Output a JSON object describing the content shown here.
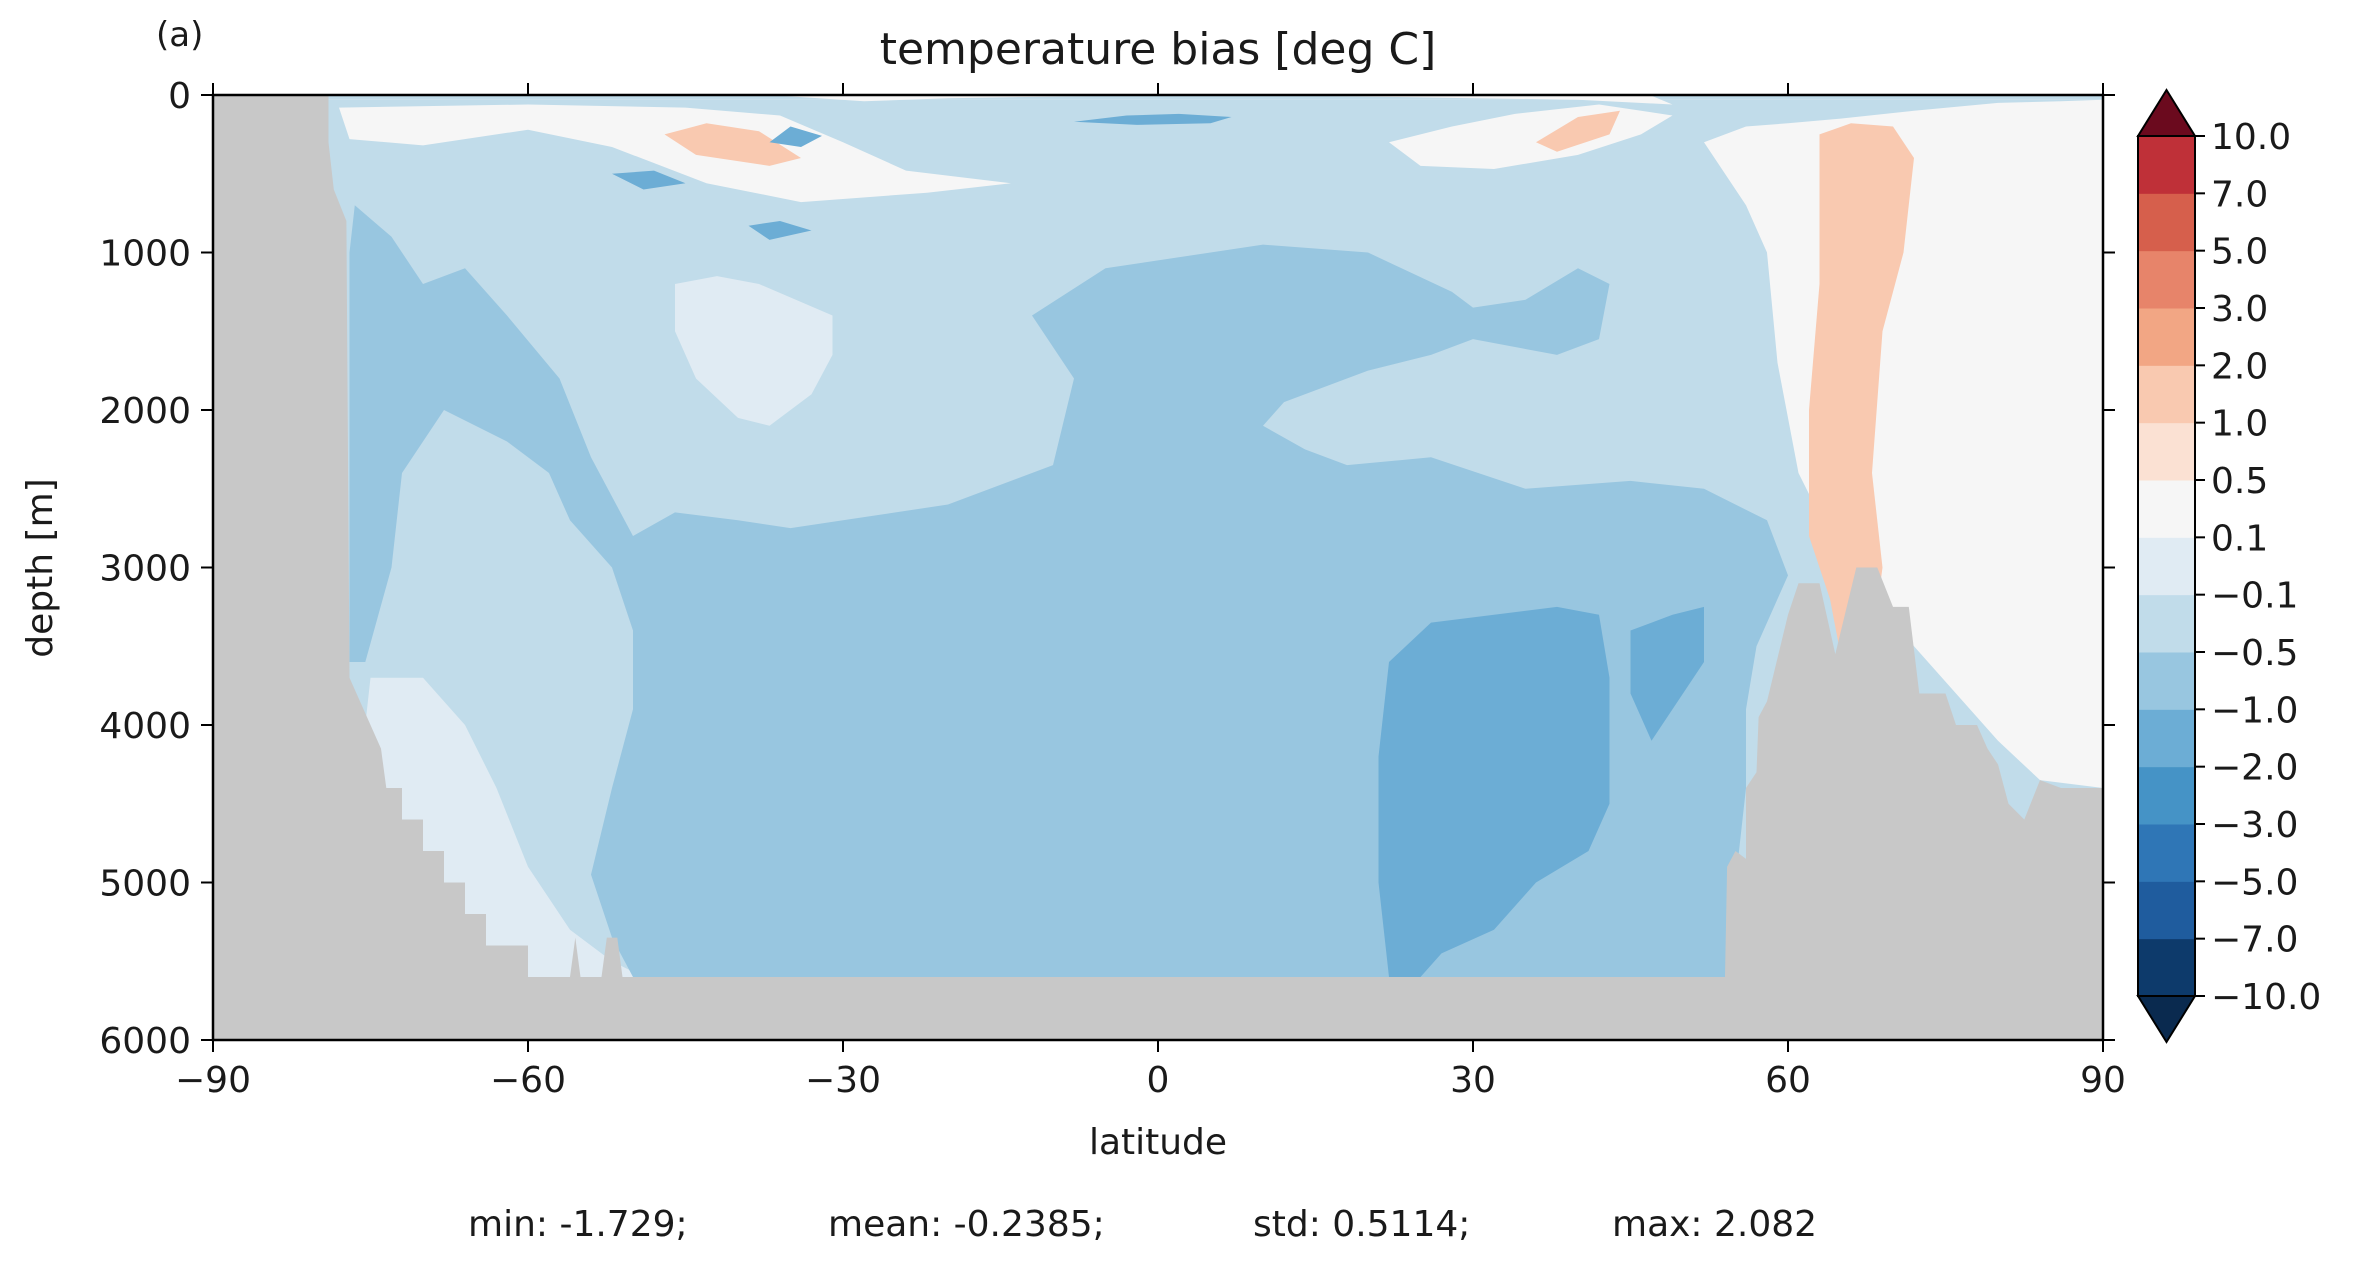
{
  "chart_data": {
    "type": "heatmap",
    "panel_label": "(a)",
    "title": "temperature bias [deg C]",
    "xlabel": "latitude",
    "ylabel": "depth [m]",
    "xlim": [
      -90,
      90
    ],
    "ylim": [
      6000,
      0
    ],
    "x_ticks": [
      -90,
      -60,
      -30,
      0,
      30,
      60,
      90
    ],
    "x_tick_labels": [
      "−90",
      "−60",
      "−30",
      "0",
      "30",
      "60",
      "90"
    ],
    "y_ticks": [
      0,
      1000,
      2000,
      3000,
      4000,
      5000,
      6000
    ],
    "y_tick_labels": [
      "0",
      "1000",
      "2000",
      "3000",
      "4000",
      "5000",
      "6000"
    ],
    "grid": false,
    "colorbar": {
      "position": "right",
      "extend": "both",
      "levels": [
        -10,
        -7,
        -5,
        -3,
        -2,
        -1,
        -0.5,
        -0.1,
        0.1,
        0.5,
        1,
        2,
        3,
        5,
        7,
        10
      ],
      "tick_labels": [
        "−10.0",
        "−7.0",
        "−5.0",
        "−3.0",
        "−2.0",
        "−1.0",
        "−0.5",
        "−0.1",
        "0.1",
        "0.5",
        "1.0",
        "2.0",
        "3.0",
        "5.0",
        "7.0",
        "10.0"
      ],
      "colors": [
        "#0d3a6b",
        "#1f5c9e",
        "#2f76b6",
        "#4593c6",
        "#6cadd5",
        "#98c6e0",
        "#c1dcea",
        "#e0ebf3",
        "#f6f6f6",
        "#fbe1d3",
        "#f9c9b0",
        "#f2a684",
        "#e7846a",
        "#d65f4c",
        "#bf3038",
        "#96142a"
      ],
      "under_color": "#0a2a4f",
      "over_color": "#6b0a1e"
    },
    "land_color": "#c8c8c8",
    "bathymetry": [
      [
        -90,
        0
      ],
      [
        -79,
        0
      ],
      [
        -79,
        300
      ],
      [
        -78.5,
        600
      ],
      [
        -77.3,
        800
      ],
      [
        -77,
        3700
      ],
      [
        -76,
        3850
      ],
      [
        -75,
        4000
      ],
      [
        -74,
        4150
      ],
      [
        -73.5,
        4400
      ],
      [
        -72,
        4400
      ],
      [
        -72,
        4600
      ],
      [
        -70,
        4600
      ],
      [
        -70,
        4800
      ],
      [
        -68,
        4800
      ],
      [
        -68,
        5000
      ],
      [
        -66,
        5000
      ],
      [
        -66,
        5200
      ],
      [
        -64,
        5200
      ],
      [
        -64,
        5400
      ],
      [
        -60,
        5400
      ],
      [
        -60,
        5600
      ],
      [
        -56,
        5600
      ],
      [
        -55.5,
        5350
      ],
      [
        -55,
        5600
      ],
      [
        -53,
        5600
      ],
      [
        -52.5,
        5350
      ],
      [
        -51.5,
        5350
      ],
      [
        -51,
        5600
      ],
      [
        54,
        5600
      ],
      [
        54.2,
        4900
      ],
      [
        55,
        4800
      ],
      [
        56,
        4850
      ],
      [
        56,
        4400
      ],
      [
        57,
        4300
      ],
      [
        57.2,
        3950
      ],
      [
        58,
        3850
      ],
      [
        60,
        3300
      ],
      [
        61,
        3100
      ],
      [
        63,
        3100
      ],
      [
        64.5,
        3550
      ],
      [
        66.5,
        3000
      ],
      [
        68.5,
        3000
      ],
      [
        70,
        3250
      ],
      [
        71.5,
        3250
      ],
      [
        72.5,
        3800
      ],
      [
        75,
        3800
      ],
      [
        76,
        4000
      ],
      [
        78,
        4000
      ],
      [
        79,
        4150
      ],
      [
        80,
        4250
      ],
      [
        81,
        4500
      ],
      [
        82.5,
        4600
      ],
      [
        84,
        4350
      ],
      [
        86,
        4400
      ],
      [
        90,
        4400
      ],
      [
        90,
        6000
      ],
      [
        -90,
        6000
      ]
    ],
    "regions": [
      {
        "v": -0.3,
        "pts": [
          [
            -79,
            30
          ],
          [
            90,
            30
          ],
          [
            90,
            6000
          ],
          [
            -90,
            6000
          ],
          [
            -90,
            30
          ]
        ]
      },
      {
        "v": -0.3,
        "pts": [
          [
            -79,
            0
          ],
          [
            90,
            0
          ],
          [
            90,
            30
          ],
          [
            -79,
            30
          ]
        ]
      },
      {
        "v": 0.0,
        "pts": [
          [
            -75,
            3700
          ],
          [
            -70,
            3700
          ],
          [
            -66,
            4000
          ],
          [
            -63,
            4400
          ],
          [
            -60,
            4900
          ],
          [
            -56,
            5300
          ],
          [
            -52,
            5500
          ],
          [
            -49,
            5600
          ],
          [
            -52,
            5650
          ],
          [
            -62,
            5600
          ],
          [
            -68,
            5300
          ],
          [
            -74,
            4900
          ],
          [
            -76,
            4300
          ]
        ]
      },
      {
        "v": -0.7,
        "pts": [
          [
            -76.5,
            700
          ],
          [
            -73,
            900
          ],
          [
            -70,
            1200
          ],
          [
            -66,
            1100
          ],
          [
            -62,
            1400
          ],
          [
            -57,
            1800
          ],
          [
            -54,
            2300
          ],
          [
            -50,
            2800
          ],
          [
            -46,
            2650
          ],
          [
            -40,
            2700
          ],
          [
            -35,
            2750
          ],
          [
            -30,
            2700
          ],
          [
            -20,
            2600
          ],
          [
            -10,
            2350
          ],
          [
            -8,
            1800
          ],
          [
            -12,
            1400
          ],
          [
            -5,
            1100
          ],
          [
            10,
            950
          ],
          [
            20,
            1000
          ],
          [
            28,
            1250
          ],
          [
            30,
            1350
          ],
          [
            35,
            1300
          ],
          [
            40,
            1100
          ],
          [
            43,
            1200
          ],
          [
            42,
            1550
          ],
          [
            38,
            1650
          ],
          [
            30,
            1550
          ],
          [
            26,
            1650
          ],
          [
            20,
            1750
          ],
          [
            12,
            1950
          ],
          [
            10,
            2100
          ],
          [
            14,
            2250
          ],
          [
            18,
            2350
          ],
          [
            26,
            2300
          ],
          [
            35,
            2500
          ],
          [
            45,
            2450
          ],
          [
            52,
            2500
          ],
          [
            58,
            2700
          ],
          [
            60,
            3050
          ],
          [
            57,
            3500
          ],
          [
            56,
            3900
          ],
          [
            56,
            4400
          ],
          [
            54,
            5600
          ],
          [
            -50,
            5600
          ],
          [
            -52,
            5350
          ],
          [
            -54,
            4950
          ],
          [
            -52,
            4400
          ],
          [
            -50,
            3900
          ],
          [
            -50,
            3400
          ],
          [
            -52,
            3000
          ],
          [
            -56,
            2700
          ],
          [
            -58,
            2400
          ],
          [
            -62,
            2200
          ],
          [
            -68,
            2000
          ],
          [
            -72,
            2400
          ],
          [
            -73,
            3000
          ],
          [
            -75.5,
            3600
          ],
          [
            -77,
            3600
          ],
          [
            -77,
            1000
          ]
        ]
      },
      {
        "v": -1.3,
        "pts": [
          [
            22,
            3600
          ],
          [
            26,
            3350
          ],
          [
            32,
            3300
          ],
          [
            38,
            3250
          ],
          [
            42,
            3300
          ],
          [
            43,
            3700
          ],
          [
            43,
            4500
          ],
          [
            41,
            4800
          ],
          [
            36,
            5000
          ],
          [
            32,
            5300
          ],
          [
            27,
            5450
          ],
          [
            25,
            5600
          ],
          [
            22,
            5600
          ],
          [
            21,
            5000
          ],
          [
            21,
            4200
          ]
        ]
      },
      {
        "v": -1.3,
        "pts": [
          [
            45,
            3400
          ],
          [
            49,
            3300
          ],
          [
            52,
            3250
          ],
          [
            52,
            3600
          ],
          [
            50,
            3800
          ],
          [
            47,
            4100
          ],
          [
            45,
            3800
          ]
        ]
      },
      {
        "v": 0.0,
        "pts": [
          [
            -46,
            1200
          ],
          [
            -42,
            1150
          ],
          [
            -38,
            1200
          ],
          [
            -31,
            1400
          ],
          [
            -31,
            1650
          ],
          [
            -33,
            1900
          ],
          [
            -37,
            2100
          ],
          [
            -40,
            2050
          ],
          [
            -44,
            1800
          ],
          [
            -46,
            1500
          ]
        ]
      },
      {
        "v": 0.3,
        "pts": [
          [
            52,
            300
          ],
          [
            56,
            200
          ],
          [
            60,
            180
          ],
          [
            65,
            150
          ],
          [
            72,
            100
          ],
          [
            80,
            50
          ],
          [
            86,
            40
          ],
          [
            90,
            30
          ],
          [
            90,
            4400
          ],
          [
            84,
            4350
          ],
          [
            80,
            4100
          ],
          [
            76,
            3800
          ],
          [
            72,
            3500
          ],
          [
            68,
            3100
          ],
          [
            64,
            2800
          ],
          [
            61,
            2400
          ],
          [
            59,
            1700
          ],
          [
            58,
            1000
          ],
          [
            56,
            700
          ],
          [
            54,
            500
          ]
        ]
      },
      {
        "v": 1.5,
        "pts": [
          [
            63,
            250
          ],
          [
            66,
            180
          ],
          [
            70,
            200
          ],
          [
            72,
            400
          ],
          [
            71,
            1000
          ],
          [
            69,
            1500
          ],
          [
            68,
            2400
          ],
          [
            69,
            3000
          ],
          [
            68,
            3500
          ],
          [
            65,
            3550
          ],
          [
            64,
            3200
          ],
          [
            62,
            2800
          ],
          [
            62,
            2000
          ],
          [
            63,
            1200
          ],
          [
            63,
            600
          ]
        ]
      },
      {
        "v": 0.3,
        "pts": [
          [
            -78,
            80
          ],
          [
            -60,
            60
          ],
          [
            -45,
            80
          ],
          [
            -36,
            130
          ],
          [
            -30,
            300
          ],
          [
            -24,
            480
          ],
          [
            -14,
            560
          ],
          [
            -22,
            620
          ],
          [
            -34,
            680
          ],
          [
            -43,
            560
          ],
          [
            -52,
            330
          ],
          [
            -60,
            220
          ],
          [
            -70,
            320
          ],
          [
            -77,
            280
          ]
        ]
      },
      {
        "v": 1.5,
        "pts": [
          [
            -47,
            250
          ],
          [
            -43,
            180
          ],
          [
            -38,
            230
          ],
          [
            -34,
            400
          ],
          [
            -37,
            450
          ],
          [
            -44,
            380
          ]
        ]
      },
      {
        "v": 0.3,
        "pts": [
          [
            22,
            300
          ],
          [
            28,
            200
          ],
          [
            34,
            120
          ],
          [
            42,
            60
          ],
          [
            49,
            130
          ],
          [
            46,
            250
          ],
          [
            40,
            380
          ],
          [
            32,
            470
          ],
          [
            25,
            450
          ]
        ]
      },
      {
        "v": 1.5,
        "pts": [
          [
            36,
            300
          ],
          [
            40,
            140
          ],
          [
            44,
            100
          ],
          [
            43,
            250
          ],
          [
            38,
            360
          ]
        ]
      },
      {
        "v": 0.3,
        "pts": [
          [
            -37,
            0
          ],
          [
            -28,
            40
          ],
          [
            -20,
            20
          ],
          [
            -10,
            10
          ],
          [
            0,
            0
          ],
          [
            10,
            0
          ],
          [
            20,
            10
          ],
          [
            30,
            20
          ],
          [
            40,
            30
          ],
          [
            49,
            60
          ],
          [
            47,
            5
          ],
          [
            30,
            5
          ],
          [
            10,
            5
          ],
          [
            -10,
            5
          ],
          [
            -30,
            5
          ]
        ]
      },
      {
        "v": -1.3,
        "pts": [
          [
            -35,
            200
          ],
          [
            -32,
            260
          ],
          [
            -34,
            330
          ],
          [
            -37,
            300
          ]
        ]
      },
      {
        "v": -1.3,
        "pts": [
          [
            -8,
            170
          ],
          [
            -3,
            130
          ],
          [
            2,
            120
          ],
          [
            7,
            140
          ],
          [
            5,
            180
          ],
          [
            -2,
            190
          ]
        ]
      },
      {
        "v": -1.3,
        "pts": [
          [
            -52,
            500
          ],
          [
            -48,
            480
          ],
          [
            -45,
            560
          ],
          [
            -49,
            600
          ]
        ]
      },
      {
        "v": -1.3,
        "pts": [
          [
            -39,
            830
          ],
          [
            -36,
            800
          ],
          [
            -33,
            860
          ],
          [
            -37,
            920
          ]
        ]
      }
    ],
    "stats": {
      "min_label": "min: -1.729;",
      "mean_label": "mean: -0.2385;",
      "std_label": "std: 0.5114;",
      "max_label": "max: 2.082"
    }
  }
}
